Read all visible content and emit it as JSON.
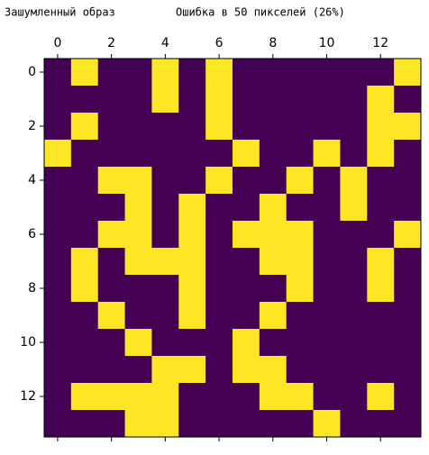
{
  "chart_data": {
    "type": "heatmap",
    "title": "Зашумленный образ",
    "subtitle": "Ошибка в 50 пикселей (26%)",
    "colors": [
      "#440154",
      "#fde725"
    ],
    "xlim": [
      -0.5,
      13.5
    ],
    "ylim": [
      -0.5,
      13.5
    ],
    "xticks": [
      0,
      2,
      4,
      6,
      8,
      10,
      12
    ],
    "yticks": [
      0,
      2,
      4,
      6,
      8,
      10,
      12
    ],
    "values": [
      [
        0,
        1,
        0,
        0,
        1,
        0,
        1,
        0,
        0,
        0,
        0,
        0,
        0,
        1
      ],
      [
        0,
        0,
        0,
        0,
        1,
        0,
        1,
        0,
        0,
        0,
        0,
        0,
        1,
        0
      ],
      [
        0,
        1,
        0,
        0,
        0,
        0,
        1,
        0,
        0,
        0,
        0,
        0,
        1,
        1
      ],
      [
        1,
        0,
        0,
        0,
        0,
        0,
        0,
        1,
        0,
        0,
        1,
        0,
        1,
        0
      ],
      [
        0,
        0,
        1,
        1,
        0,
        0,
        1,
        0,
        0,
        1,
        0,
        1,
        0,
        0
      ],
      [
        0,
        0,
        0,
        1,
        0,
        1,
        0,
        0,
        1,
        0,
        0,
        1,
        0,
        0
      ],
      [
        0,
        0,
        1,
        1,
        0,
        1,
        0,
        1,
        1,
        1,
        0,
        0,
        0,
        1
      ],
      [
        0,
        1,
        0,
        1,
        1,
        1,
        0,
        0,
        1,
        1,
        0,
        0,
        1,
        0
      ],
      [
        0,
        1,
        0,
        0,
        0,
        1,
        0,
        0,
        0,
        1,
        0,
        0,
        1,
        0
      ],
      [
        0,
        0,
        1,
        0,
        0,
        1,
        0,
        0,
        1,
        0,
        0,
        0,
        0,
        0
      ],
      [
        0,
        0,
        0,
        1,
        0,
        0,
        0,
        1,
        0,
        0,
        0,
        0,
        0,
        0
      ],
      [
        0,
        0,
        0,
        0,
        1,
        1,
        0,
        1,
        1,
        0,
        0,
        0,
        0,
        0
      ],
      [
        0,
        1,
        1,
        1,
        1,
        0,
        0,
        0,
        1,
        1,
        0,
        0,
        1,
        0
      ],
      [
        0,
        0,
        0,
        1,
        1,
        0,
        0,
        0,
        0,
        0,
        1,
        0,
        0,
        0
      ]
    ]
  }
}
